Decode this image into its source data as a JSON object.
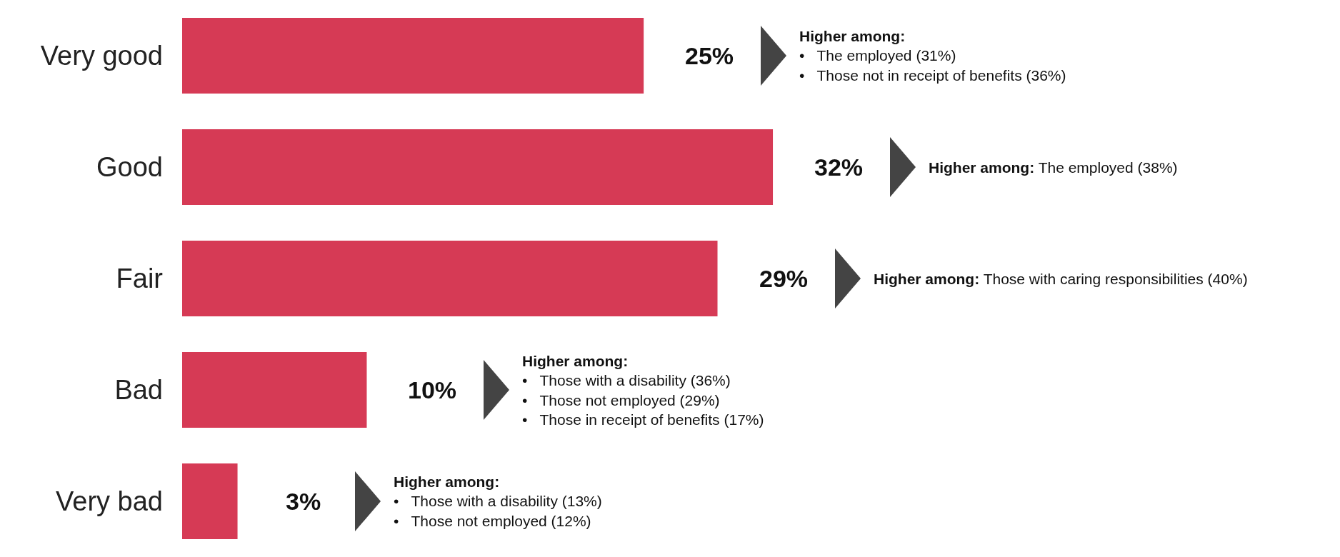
{
  "chart_data": {
    "type": "bar",
    "orientation": "horizontal",
    "data_labels": true,
    "categories": [
      "Very good",
      "Good",
      "Fair",
      "Bad",
      "Very bad"
    ],
    "values": [
      25,
      32,
      29,
      10,
      3
    ],
    "value_labels": [
      "25%",
      "32%",
      "29%",
      "10%",
      "3%"
    ],
    "color": "#d63a55",
    "annotations": [
      "Higher among:\n•   The employed (31%)\n•   Those not in receipt of benefits (36%)",
      "Higher among: The employed (38%)",
      "Higher among: Those with caring responsibilities (40%)",
      "Higher among:\n•   Those with a disability (36%)\n•   Those not employed (29%)\n•   Those in receipt of benefits (17%)",
      "Higher among:\n•   Those with a disability (13%)\n•   Those not employed (12%)"
    ]
  }
}
